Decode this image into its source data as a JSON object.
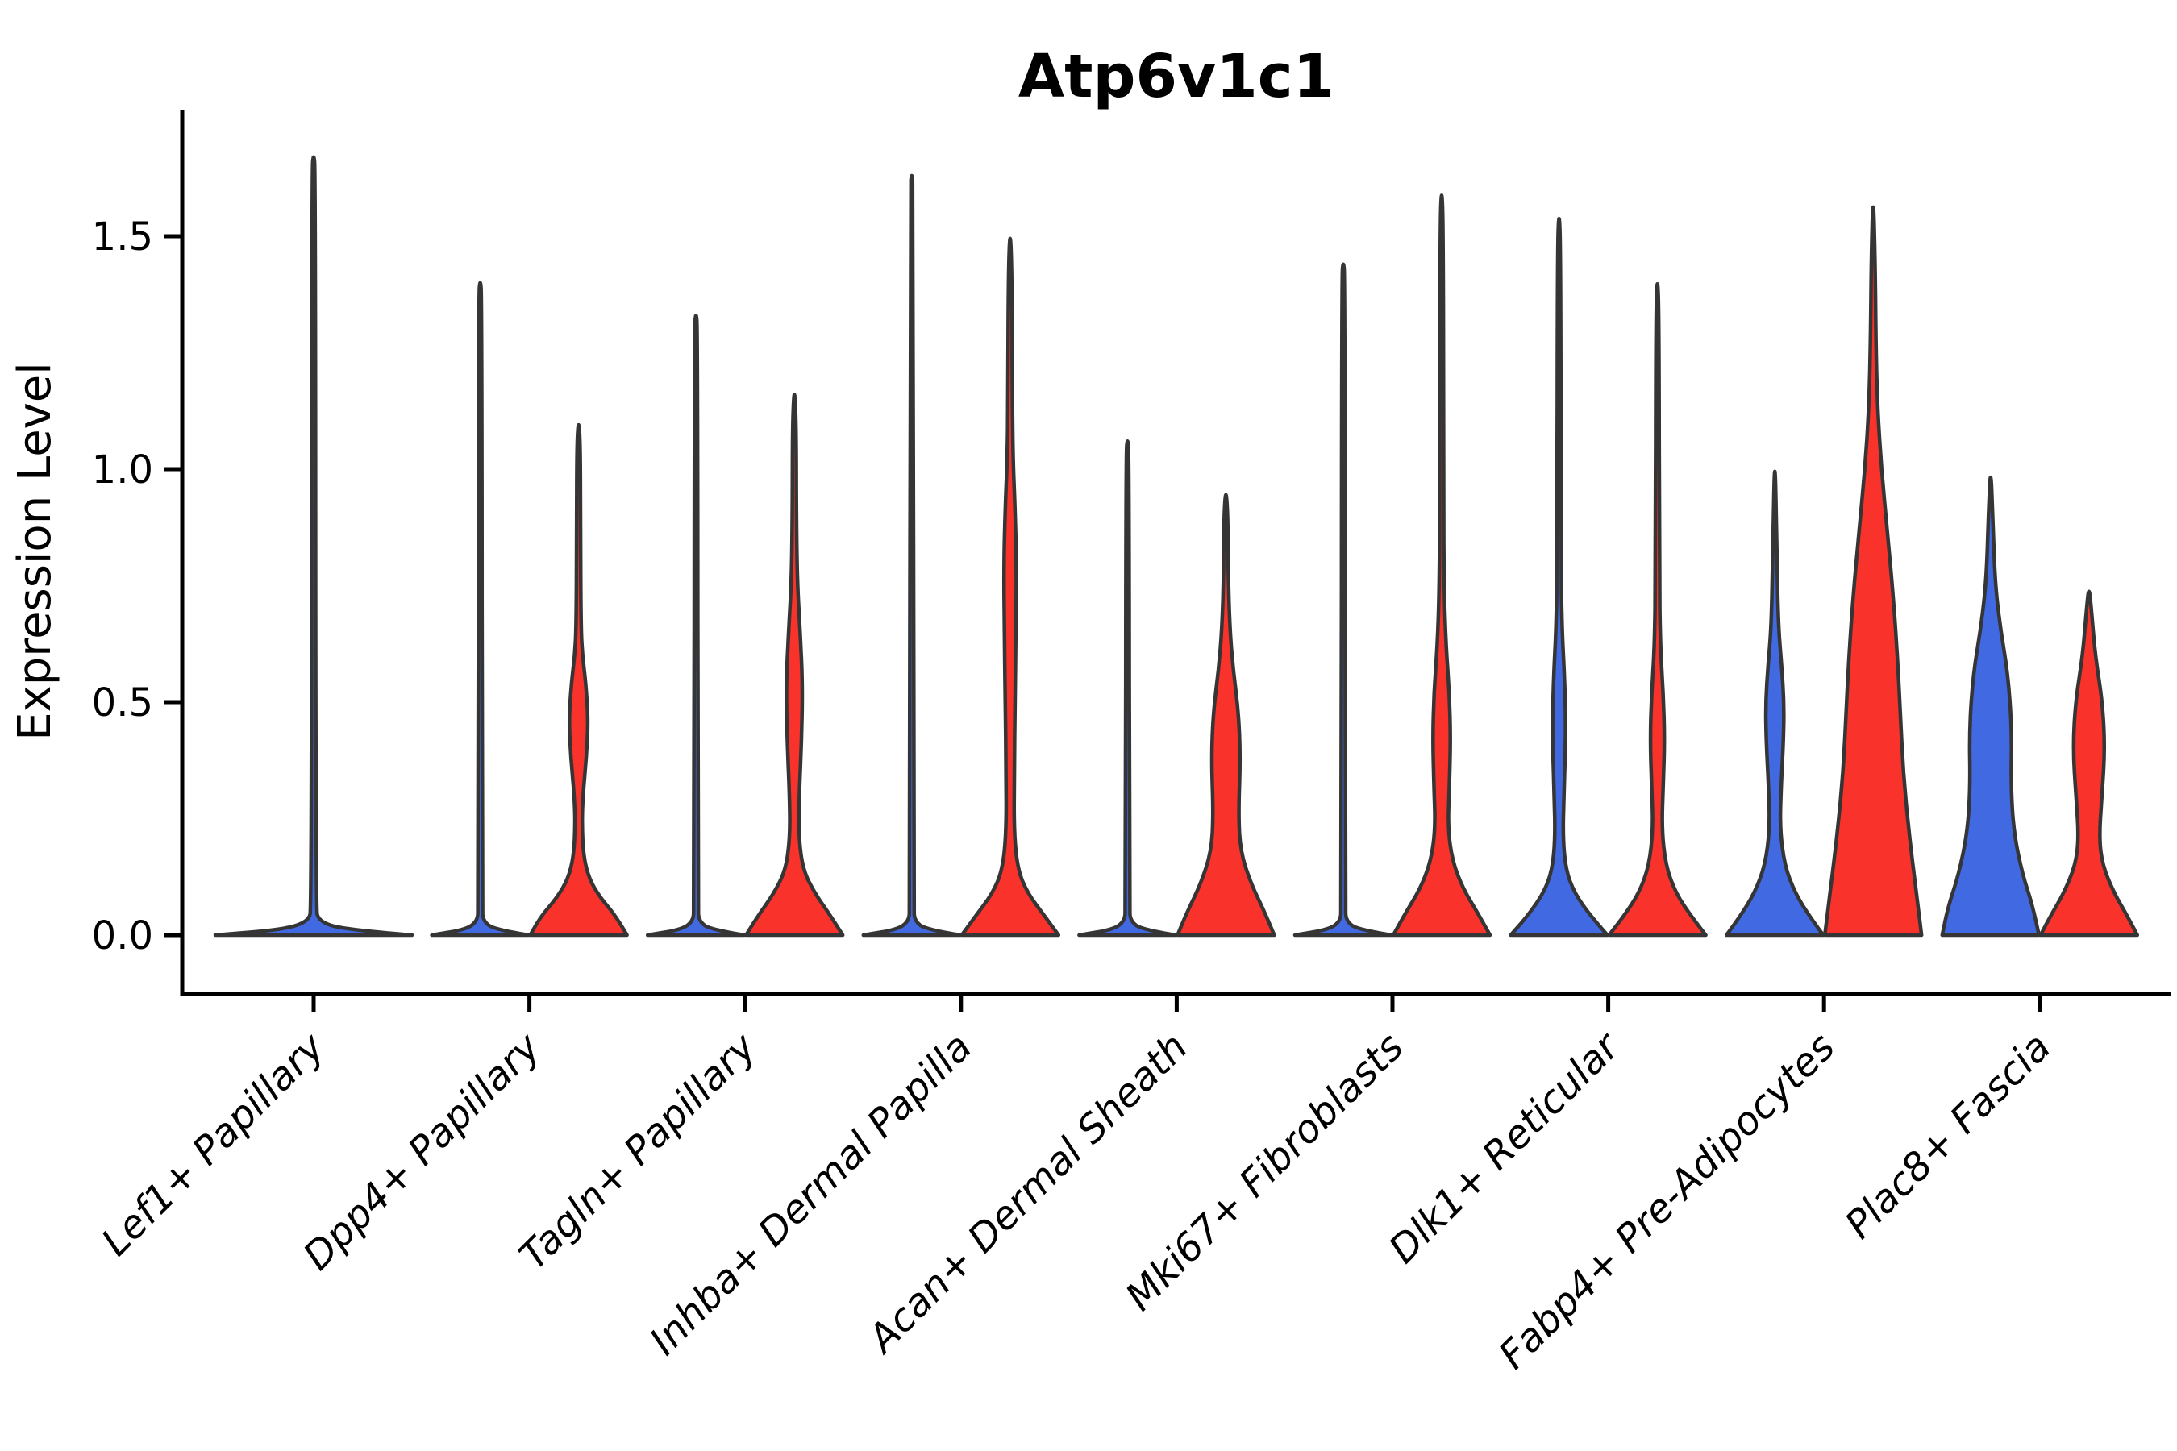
{
  "chart_data": {
    "type": "violin",
    "title": "Atp6v1c1",
    "ylabel": "Expression Level",
    "xlabel": "",
    "legend": "none",
    "grid": false,
    "ylim": [
      0,
      1.77
    ],
    "yticks": [
      {
        "label": "0.0",
        "value": 0.0
      },
      {
        "label": "0.5",
        "value": 0.5
      },
      {
        "label": "1.0",
        "value": 1.0
      },
      {
        "label": "1.5",
        "value": 1.5
      }
    ],
    "colors": {
      "blue": "#4169e1",
      "red": "#f9322c",
      "outline": "#353535",
      "axis": "#000000"
    },
    "split_groups": [
      "blue-left",
      "red-right"
    ],
    "categories": [
      {
        "label": "Lef1+ Papillary",
        "slug": "lef1-papillary",
        "violins": [
          {
            "side": "full",
            "color": "blue",
            "max": 1.68,
            "profile": [
              [
                0,
                1.0
              ],
              [
                0.012,
                0.3
              ],
              [
                0.03,
                0.05
              ],
              [
                0.06,
                0.022
              ],
              [
                1.64,
                0.018
              ],
              [
                1.68,
                0
              ]
            ]
          }
        ]
      },
      {
        "label": "Dpp4+ Papillary",
        "slug": "dpp4-papillary",
        "violins": [
          {
            "side": "left",
            "color": "blue",
            "max": 1.41,
            "profile": [
              [
                0,
                1.0
              ],
              [
                0.012,
                0.3
              ],
              [
                0.03,
                0.06
              ],
              [
                0.06,
                0.04
              ],
              [
                1.37,
                0.034
              ],
              [
                1.41,
                0
              ]
            ]
          },
          {
            "side": "right",
            "color": "red",
            "max": 1.11,
            "profile": [
              [
                0,
                1.0
              ],
              [
                0.04,
                0.78
              ],
              [
                0.08,
                0.45
              ],
              [
                0.12,
                0.22
              ],
              [
                0.17,
                0.1
              ],
              [
                0.24,
                0.07
              ],
              [
                0.3,
                0.09
              ],
              [
                0.38,
                0.16
              ],
              [
                0.46,
                0.2
              ],
              [
                0.54,
                0.15
              ],
              [
                0.6,
                0.08
              ],
              [
                0.66,
                0.05
              ],
              [
                0.85,
                0.04
              ],
              [
                1.05,
                0.037
              ],
              [
                1.11,
                0
              ]
            ]
          }
        ]
      },
      {
        "label": "Tagln+ Papillary",
        "slug": "tagln-papillary",
        "violins": [
          {
            "side": "left",
            "color": "blue",
            "max": 1.34,
            "profile": [
              [
                0,
                1.0
              ],
              [
                0.012,
                0.3
              ],
              [
                0.03,
                0.06
              ],
              [
                0.06,
                0.04
              ],
              [
                1.3,
                0.034
              ],
              [
                1.34,
                0
              ]
            ]
          },
          {
            "side": "right",
            "color": "red",
            "max": 1.18,
            "profile": [
              [
                0,
                1.0
              ],
              [
                0.04,
                0.76
              ],
              [
                0.09,
                0.42
              ],
              [
                0.14,
                0.18
              ],
              [
                0.21,
                0.09
              ],
              [
                0.3,
                0.1
              ],
              [
                0.42,
                0.15
              ],
              [
                0.54,
                0.17
              ],
              [
                0.65,
                0.12
              ],
              [
                0.76,
                0.06
              ],
              [
                0.9,
                0.042
              ],
              [
                1.1,
                0.038
              ],
              [
                1.18,
                0
              ]
            ]
          }
        ]
      },
      {
        "label": "Inhba+ Dermal Papilla",
        "slug": "inhba-dermal-papilla",
        "violins": [
          {
            "side": "left",
            "color": "blue",
            "max": 1.64,
            "profile": [
              [
                0,
                1.0
              ],
              [
                0.012,
                0.3
              ],
              [
                0.03,
                0.06
              ],
              [
                0.06,
                0.04
              ],
              [
                1.6,
                0.034
              ],
              [
                1.64,
                0
              ]
            ]
          },
          {
            "side": "right",
            "color": "red",
            "max": 1.52,
            "profile": [
              [
                0,
                1.0
              ],
              [
                0.04,
                0.72
              ],
              [
                0.09,
                0.36
              ],
              [
                0.14,
                0.16
              ],
              [
                0.22,
                0.08
              ],
              [
                0.35,
                0.085
              ],
              [
                0.5,
                0.1
              ],
              [
                0.65,
                0.12
              ],
              [
                0.8,
                0.13
              ],
              [
                0.92,
                0.1
              ],
              [
                1.02,
                0.06
              ],
              [
                1.15,
                0.045
              ],
              [
                1.42,
                0.037
              ],
              [
                1.52,
                0
              ]
            ]
          }
        ]
      },
      {
        "label": "Acan+ Dermal Sheath",
        "slug": "acan-dermal-sheath",
        "violins": [
          {
            "side": "left",
            "color": "blue",
            "max": 1.07,
            "profile": [
              [
                0,
                1.0
              ],
              [
                0.012,
                0.3
              ],
              [
                0.03,
                0.06
              ],
              [
                0.06,
                0.04
              ],
              [
                1.03,
                0.034
              ],
              [
                1.07,
                0
              ]
            ]
          },
          {
            "side": "right",
            "color": "red",
            "max": 0.96,
            "profile": [
              [
                0,
                1.0
              ],
              [
                0.05,
                0.8
              ],
              [
                0.11,
                0.52
              ],
              [
                0.18,
                0.3
              ],
              [
                0.26,
                0.26
              ],
              [
                0.38,
                0.3
              ],
              [
                0.48,
                0.26
              ],
              [
                0.57,
                0.15
              ],
              [
                0.66,
                0.08
              ],
              [
                0.78,
                0.045
              ],
              [
                0.9,
                0.04
              ],
              [
                0.96,
                0
              ]
            ]
          }
        ]
      },
      {
        "label": "Mki67+ Fibroblasts",
        "slug": "mki67-fibroblasts",
        "violins": [
          {
            "side": "left",
            "color": "blue",
            "max": 1.45,
            "profile": [
              [
                0,
                1.0
              ],
              [
                0.012,
                0.3
              ],
              [
                0.03,
                0.06
              ],
              [
                0.06,
                0.04
              ],
              [
                1.41,
                0.034
              ],
              [
                1.45,
                0
              ]
            ]
          },
          {
            "side": "right",
            "color": "red",
            "max": 1.61,
            "profile": [
              [
                0,
                1.0
              ],
              [
                0.045,
                0.76
              ],
              [
                0.1,
                0.44
              ],
              [
                0.16,
                0.22
              ],
              [
                0.23,
                0.13
              ],
              [
                0.32,
                0.16
              ],
              [
                0.42,
                0.185
              ],
              [
                0.52,
                0.16
              ],
              [
                0.62,
                0.09
              ],
              [
                0.74,
                0.05
              ],
              [
                0.95,
                0.038
              ],
              [
                1.52,
                0.034
              ],
              [
                1.61,
                0
              ]
            ]
          }
        ]
      },
      {
        "label": "Dlk1+ Reticular",
        "slug": "dlk1-reticular",
        "violins": [
          {
            "side": "left",
            "color": "blue",
            "max": 1.56,
            "profile": [
              [
                0,
                1.0
              ],
              [
                0.04,
                0.66
              ],
              [
                0.09,
                0.32
              ],
              [
                0.14,
                0.14
              ],
              [
                0.21,
                0.08
              ],
              [
                0.3,
                0.1
              ],
              [
                0.4,
                0.13
              ],
              [
                0.47,
                0.135
              ],
              [
                0.56,
                0.11
              ],
              [
                0.66,
                0.06
              ],
              [
                0.8,
                0.04
              ],
              [
                1.47,
                0.034
              ],
              [
                1.56,
                0
              ]
            ]
          },
          {
            "side": "right",
            "color": "red",
            "max": 1.42,
            "profile": [
              [
                0,
                1.0
              ],
              [
                0.04,
                0.7
              ],
              [
                0.09,
                0.38
              ],
              [
                0.15,
                0.17
              ],
              [
                0.23,
                0.09
              ],
              [
                0.32,
                0.12
              ],
              [
                0.42,
                0.15
              ],
              [
                0.52,
                0.12
              ],
              [
                0.62,
                0.06
              ],
              [
                0.78,
                0.04
              ],
              [
                1.33,
                0.034
              ],
              [
                1.42,
                0
              ]
            ]
          }
        ]
      },
      {
        "label": "Fabp4+ Pre-Adipocytes",
        "slug": "fabp4-pre-adipocytes",
        "violins": [
          {
            "side": "left",
            "color": "blue",
            "max": 1.06,
            "profile": [
              [
                0,
                1.0
              ],
              [
                0.04,
                0.72
              ],
              [
                0.09,
                0.42
              ],
              [
                0.15,
                0.2
              ],
              [
                0.23,
                0.105
              ],
              [
                0.32,
                0.13
              ],
              [
                0.42,
                0.18
              ],
              [
                0.5,
                0.19
              ],
              [
                0.58,
                0.14
              ],
              [
                0.66,
                0.075
              ],
              [
                0.8,
                0.045
              ],
              [
                1.06,
                0
              ]
            ]
          },
          {
            "side": "right",
            "color": "red",
            "max": 1.6,
            "profile": [
              [
                0,
                1.0
              ],
              [
                0.1,
                0.88
              ],
              [
                0.22,
                0.74
              ],
              [
                0.35,
                0.62
              ],
              [
                0.48,
                0.56
              ],
              [
                0.6,
                0.5
              ],
              [
                0.72,
                0.42
              ],
              [
                0.86,
                0.3
              ],
              [
                1.0,
                0.17
              ],
              [
                1.14,
                0.085
              ],
              [
                1.28,
                0.055
              ],
              [
                1.45,
                0.04
              ],
              [
                1.6,
                0
              ]
            ]
          }
        ]
      },
      {
        "label": "Plac8+ Fascia",
        "slug": "plac8-fascia",
        "violins": [
          {
            "side": "left",
            "color": "blue",
            "max": 1.01,
            "profile": [
              [
                0,
                1.0
              ],
              [
                0.06,
                0.88
              ],
              [
                0.13,
                0.66
              ],
              [
                0.22,
                0.48
              ],
              [
                0.32,
                0.42
              ],
              [
                0.44,
                0.44
              ],
              [
                0.56,
                0.36
              ],
              [
                0.66,
                0.2
              ],
              [
                0.76,
                0.09
              ],
              [
                0.9,
                0.045
              ],
              [
                1.01,
                0
              ]
            ]
          },
          {
            "side": "right",
            "color": "red",
            "max": 0.75,
            "profile": [
              [
                0,
                1.0
              ],
              [
                0.04,
                0.8
              ],
              [
                0.09,
                0.52
              ],
              [
                0.15,
                0.28
              ],
              [
                0.21,
                0.21
              ],
              [
                0.3,
                0.27
              ],
              [
                0.4,
                0.33
              ],
              [
                0.5,
                0.28
              ],
              [
                0.6,
                0.13
              ],
              [
                0.7,
                0.05
              ],
              [
                0.75,
                0
              ]
            ]
          }
        ]
      }
    ]
  }
}
